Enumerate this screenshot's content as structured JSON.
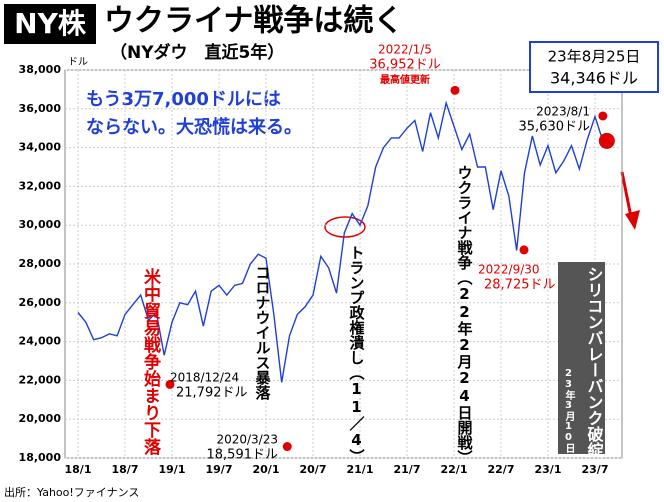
{
  "chart_data": {
    "type": "line",
    "badge": "NY株",
    "title": "ウクライナ戦争は続く",
    "subtitle": "（NYダウ　直近5年）",
    "y_unit": "ドル",
    "source": "出所：Yahoo!ファイナンス",
    "callout": [
      "もう3万7,000ドルには",
      "ならない。大恐慌は来る。"
    ],
    "color": "#1f3fd6",
    "x": [
      "18/1",
      "18/2",
      "18/3",
      "18/4",
      "18/5",
      "18/6",
      "18/7",
      "18/8",
      "18/9",
      "18/10",
      "18/11",
      "18/12",
      "19/1",
      "19/2",
      "19/3",
      "19/4",
      "19/5",
      "19/6",
      "19/7",
      "19/8",
      "19/9",
      "19/10",
      "19/11",
      "19/12",
      "20/1",
      "20/2",
      "20/3",
      "20/4",
      "20/5",
      "20/6",
      "20/7",
      "20/8",
      "20/9",
      "20/10",
      "20/11",
      "20/12",
      "21/1",
      "21/2",
      "21/3",
      "21/4",
      "21/5",
      "21/6",
      "21/7",
      "21/8",
      "21/9",
      "21/10",
      "21/11",
      "21/12",
      "22/1",
      "22/2",
      "22/3",
      "22/4",
      "22/5",
      "22/6",
      "22/7",
      "22/8",
      "22/9",
      "22/10",
      "22/11",
      "22/12",
      "23/1",
      "23/2",
      "23/3",
      "23/4",
      "23/5",
      "23/6",
      "23/7",
      "23/8"
    ],
    "values": [
      25500,
      25000,
      24100,
      24200,
      24400,
      24300,
      25400,
      25900,
      26400,
      25100,
      25500,
      23300,
      25000,
      26000,
      25900,
      26600,
      24800,
      26600,
      26900,
      26400,
      26900,
      27000,
      28000,
      28500,
      28300,
      25400,
      21900,
      24300,
      25400,
      25800,
      26400,
      28400,
      27800,
      26500,
      29600,
      30600,
      30000,
      31000,
      33000,
      34000,
      34500,
      34500,
      35000,
      35400,
      33800,
      35800,
      34500,
      36300,
      35100,
      33900,
      34700,
      33000,
      33000,
      30800,
      32800,
      31500,
      28700,
      32700,
      34600,
      33100,
      34100,
      32700,
      33300,
      34100,
      32900,
      34400,
      35600,
      34346
    ],
    "ylim": [
      18000,
      38000
    ],
    "yticks": [
      {
        "value": 18000,
        "label": "18,000"
      },
      {
        "value": 20000,
        "label": "20,000"
      },
      {
        "value": 22000,
        "label": "22,000"
      },
      {
        "value": 24000,
        "label": "24,000"
      },
      {
        "value": 26000,
        "label": "26,000"
      },
      {
        "value": 28000,
        "label": "28,000"
      },
      {
        "value": 30000,
        "label": "30,000"
      },
      {
        "value": 32000,
        "label": "32,000"
      },
      {
        "value": 34000,
        "label": "34,000"
      },
      {
        "value": 36000,
        "label": "36,000"
      },
      {
        "value": 38000,
        "label": "38,000"
      }
    ],
    "xticks": [
      "18/1",
      "18/7",
      "19/1",
      "19/7",
      "20/1",
      "20/7",
      "21/1",
      "21/7",
      "22/1",
      "22/7",
      "23/1",
      "23/7"
    ],
    "grid": true,
    "highlights": [
      {
        "date": "2018/12/24",
        "value": 21792,
        "value_label": "21,792ドル"
      },
      {
        "date": "2020/3/23",
        "value": 18591,
        "value_label": "18,591ドル"
      },
      {
        "date": "2022/1/5",
        "value": 36952,
        "value_label": "36,952ドル",
        "note": "最高値更新"
      },
      {
        "date": "2022/9/30",
        "value": 28725,
        "value_label": "28,725ドル"
      },
      {
        "date": "2023/8/1",
        "value": 35630,
        "value_label": "35,630ドル"
      }
    ],
    "latest": {
      "date": "23年8月25日",
      "value": 34346,
      "value_label": "34,346ドル"
    },
    "annotations": [
      {
        "text": "米中貿易戦争始まり下落",
        "color": "#e00000"
      },
      {
        "text": "コロナウイルス暴落",
        "color": "#000000"
      },
      {
        "text": "トランプ政権潰し（11／4）",
        "color": "#000000"
      },
      {
        "text": "ウクライナ戦争（22年2月24日開戦）",
        "color": "#000000"
      }
    ],
    "event_box": {
      "text": "シリコンバレーバンク破綻",
      "date": "23年3月10日"
    }
  }
}
